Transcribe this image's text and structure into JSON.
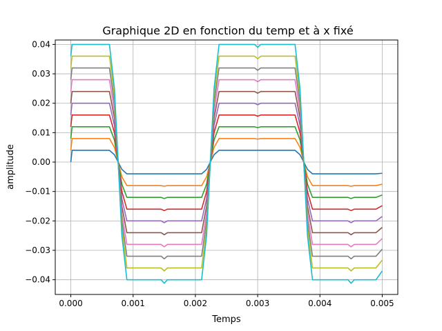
{
  "chart_data": {
    "type": "line",
    "title": "Graphique 2D en fonction du temp et à x fixé",
    "xlabel": "Temps",
    "ylabel": "amplitude",
    "xlim": [
      -0.00025,
      0.00525
    ],
    "ylim": [
      -0.045,
      0.0415
    ],
    "xticks": [
      0.0,
      0.001,
      0.002,
      0.003,
      0.004,
      0.005
    ],
    "xtick_labels": [
      "0.000",
      "0.001",
      "0.002",
      "0.003",
      "0.004",
      "0.005"
    ],
    "yticks": [
      -0.04,
      -0.03,
      -0.02,
      -0.01,
      0.0,
      0.01,
      0.02,
      0.03,
      0.04
    ],
    "ytick_labels": [
      "−0.04",
      "−0.03",
      "−0.02",
      "−0.01",
      "0.00",
      "0.01",
      "0.02",
      "0.03",
      "0.04"
    ],
    "grid": true,
    "x": [
      0.0,
      2e-05,
      0.00015,
      0.00062,
      0.0007,
      0.00076,
      0.00082,
      0.0009,
      0.00145,
      0.0015,
      0.00155,
      0.0021,
      0.00218,
      0.00224,
      0.0023,
      0.00238,
      0.00295,
      0.003,
      0.00305,
      0.0036,
      0.00368,
      0.00374,
      0.0038,
      0.00388,
      0.00445,
      0.0045,
      0.00455,
      0.0049,
      0.005
    ],
    "series": [
      {
        "color": "#1f77b4",
        "values": [
          0.0,
          0.004,
          0.004,
          0.004,
          0.0025,
          0.0,
          -0.0025,
          -0.004,
          -0.004,
          -0.004,
          -0.004,
          -0.004,
          -0.0025,
          0.0,
          0.0025,
          0.004,
          0.004,
          0.004,
          0.004,
          0.004,
          0.0025,
          0.0,
          -0.0025,
          -0.004,
          -0.004,
          -0.004,
          -0.004,
          -0.004,
          -0.0038
        ]
      },
      {
        "color": "#ff7f0e",
        "values": [
          0.004,
          0.008,
          0.008,
          0.008,
          0.005,
          0.0,
          -0.005,
          -0.008,
          -0.008,
          -0.0082,
          -0.008,
          -0.008,
          -0.005,
          0.0,
          0.005,
          0.008,
          0.008,
          0.0078,
          0.008,
          0.008,
          0.005,
          0.0,
          -0.005,
          -0.008,
          -0.008,
          -0.0082,
          -0.008,
          -0.008,
          -0.0075
        ]
      },
      {
        "color": "#2ca02c",
        "values": [
          0.008,
          0.012,
          0.012,
          0.012,
          0.0075,
          0.0,
          -0.0075,
          -0.012,
          -0.012,
          -0.0124,
          -0.012,
          -0.012,
          -0.0075,
          0.0,
          0.0075,
          0.012,
          0.012,
          0.0117,
          0.012,
          0.012,
          0.0075,
          0.0,
          -0.0075,
          -0.012,
          -0.012,
          -0.0124,
          -0.012,
          -0.012,
          -0.0112
        ]
      },
      {
        "color": "#d62728",
        "values": [
          0.012,
          0.016,
          0.016,
          0.016,
          0.01,
          0.0,
          -0.01,
          -0.016,
          -0.016,
          -0.0165,
          -0.016,
          -0.016,
          -0.01,
          0.0,
          0.01,
          0.016,
          0.016,
          0.0156,
          0.016,
          0.016,
          0.01,
          0.0,
          -0.01,
          -0.016,
          -0.016,
          -0.0165,
          -0.016,
          -0.016,
          -0.0148
        ]
      },
      {
        "color": "#9467bd",
        "values": [
          0.016,
          0.02,
          0.02,
          0.02,
          0.0125,
          0.0,
          -0.0125,
          -0.02,
          -0.02,
          -0.0206,
          -0.02,
          -0.02,
          -0.0125,
          0.0,
          0.0125,
          0.02,
          0.02,
          0.0195,
          0.02,
          0.02,
          0.0125,
          0.0,
          -0.0125,
          -0.02,
          -0.02,
          -0.0206,
          -0.02,
          -0.02,
          -0.0185
        ]
      },
      {
        "color": "#8c564b",
        "values": [
          0.02,
          0.024,
          0.024,
          0.024,
          0.015,
          0.0,
          -0.015,
          -0.024,
          -0.024,
          -0.0247,
          -0.024,
          -0.024,
          -0.015,
          0.0,
          0.015,
          0.024,
          0.024,
          0.0234,
          0.024,
          0.024,
          0.015,
          0.0,
          -0.015,
          -0.024,
          -0.024,
          -0.0247,
          -0.024,
          -0.024,
          -0.0222
        ]
      },
      {
        "color": "#e377c2",
        "values": [
          0.024,
          0.028,
          0.028,
          0.028,
          0.0175,
          0.0,
          -0.0175,
          -0.028,
          -0.028,
          -0.0288,
          -0.028,
          -0.028,
          -0.0175,
          0.0,
          0.0175,
          0.028,
          0.028,
          0.0273,
          0.028,
          0.028,
          0.0175,
          0.0,
          -0.0175,
          -0.028,
          -0.028,
          -0.0288,
          -0.028,
          -0.028,
          -0.026
        ]
      },
      {
        "color": "#7f7f7f",
        "values": [
          0.028,
          0.032,
          0.032,
          0.032,
          0.02,
          0.0,
          -0.02,
          -0.032,
          -0.032,
          -0.0329,
          -0.032,
          -0.032,
          -0.02,
          0.0,
          0.02,
          0.032,
          0.032,
          0.0312,
          0.032,
          0.032,
          0.02,
          0.0,
          -0.02,
          -0.032,
          -0.032,
          -0.0329,
          -0.032,
          -0.032,
          -0.0296
        ]
      },
      {
        "color": "#bcbd22",
        "values": [
          0.032,
          0.036,
          0.036,
          0.036,
          0.0225,
          0.0,
          -0.0225,
          -0.036,
          -0.036,
          -0.037,
          -0.036,
          -0.036,
          -0.0225,
          0.0,
          0.0225,
          0.036,
          0.036,
          0.0351,
          0.036,
          0.036,
          0.0225,
          0.0,
          -0.0225,
          -0.036,
          -0.036,
          -0.037,
          -0.036,
          -0.036,
          -0.0333
        ]
      },
      {
        "color": "#17becf",
        "values": [
          0.036,
          0.04,
          0.04,
          0.04,
          0.025,
          0.0,
          -0.025,
          -0.04,
          -0.04,
          -0.0412,
          -0.04,
          -0.04,
          -0.025,
          0.0,
          0.025,
          0.04,
          0.04,
          0.039,
          0.04,
          0.04,
          0.025,
          0.0,
          -0.025,
          -0.04,
          -0.04,
          -0.0412,
          -0.04,
          -0.04,
          -0.037
        ]
      }
    ]
  }
}
